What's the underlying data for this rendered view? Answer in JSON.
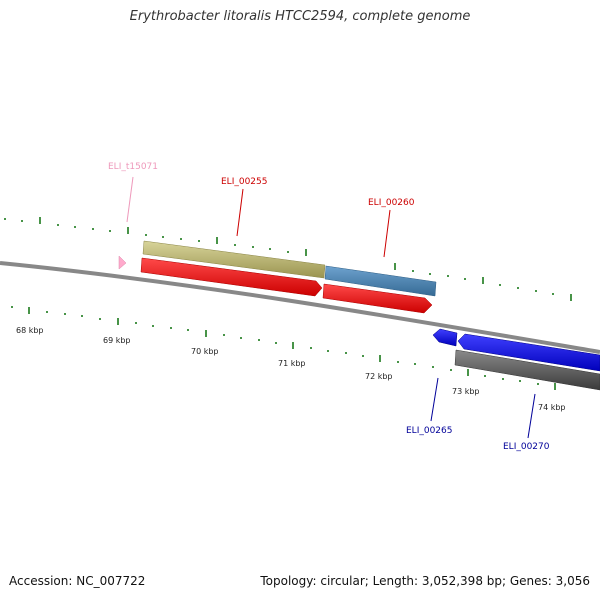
{
  "title": "Erythrobacter litoralis HTCC2594, complete genome",
  "footer": {
    "accession": "Accession: NC_007722",
    "summary": "Topology: circular; Length: 3,052,398 bp; Genes: 3,056"
  },
  "ticks": [
    "68 kbp",
    "69 kbp",
    "70 kbp",
    "71 kbp",
    "72 kbp",
    "73 kbp",
    "74 kbp"
  ],
  "genes": [
    {
      "id": "ELI_t15071",
      "color": "#ee99bb"
    },
    {
      "id": "ELI_00255",
      "color": "#cc0000"
    },
    {
      "id": "ELI_00260",
      "color": "#cc0000"
    },
    {
      "id": "ELI_00265",
      "color": "#000099"
    },
    {
      "id": "ELI_00270",
      "color": "#000099"
    }
  ],
  "colors": {
    "backbone": "#888888",
    "tick": "#1a7a1a",
    "cds_red": "#ff0000",
    "gene_khaki": "#bdb76b",
    "gene_steelblue": "#4682b4",
    "cds_blue": "#0000ff",
    "gene_gray": "#555555",
    "trna_pink": "#ffaacc"
  }
}
